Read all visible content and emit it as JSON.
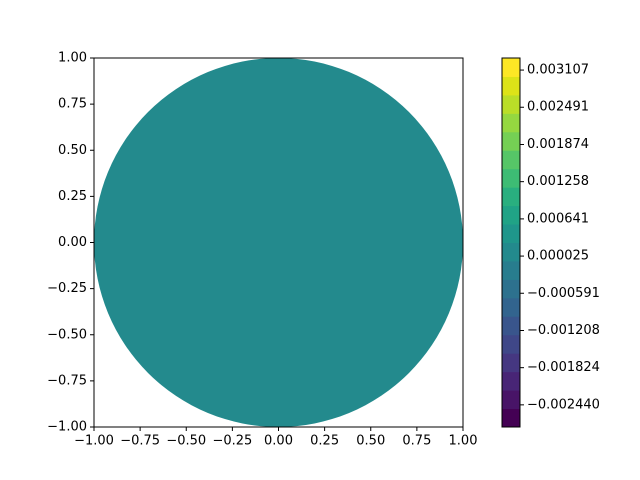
{
  "chart_data": {
    "type": "filled-contour",
    "xlim": [
      -1,
      1
    ],
    "ylim": [
      -1,
      1
    ],
    "xticks": [
      {
        "value": -1,
        "label": "−1.00"
      },
      {
        "value": -0.75,
        "label": "−0.75"
      },
      {
        "value": -0.5,
        "label": "−0.50"
      },
      {
        "value": -0.25,
        "label": "−0.25"
      },
      {
        "value": 0,
        "label": "0.00"
      },
      {
        "value": 0.25,
        "label": "0.25"
      },
      {
        "value": 0.5,
        "label": "0.50"
      },
      {
        "value": 0.75,
        "label": "0.75"
      },
      {
        "value": 1,
        "label": "1.00"
      }
    ],
    "yticks": [
      {
        "value": -1,
        "label": "−1.00"
      },
      {
        "value": -0.75,
        "label": "−0.75"
      },
      {
        "value": -0.5,
        "label": "−0.50"
      },
      {
        "value": -0.25,
        "label": "−0.25"
      },
      {
        "value": 0,
        "label": "0.00"
      },
      {
        "value": 0.25,
        "label": "0.25"
      },
      {
        "value": 0.5,
        "label": "0.50"
      },
      {
        "value": 0.75,
        "label": "0.75"
      },
      {
        "value": 1,
        "label": "1.00"
      }
    ],
    "domain": {
      "center_x": 0,
      "center_y": 0,
      "radius": 1,
      "color": "#238a8d"
    },
    "colorbar": {
      "lim": [
        -0.002807,
        0.003307
      ],
      "colors": [
        "#440154",
        "#481467",
        "#482576",
        "#453781",
        "#3f4788",
        "#39558c",
        "#32648e",
        "#2d718e",
        "#287d8e",
        "#238a8d",
        "#1f968b",
        "#20a386",
        "#29af7f",
        "#3dbc74",
        "#56c667",
        "#75d054",
        "#95d840",
        "#bade28",
        "#dde318",
        "#fde725"
      ],
      "ticks": [
        {
          "value": -0.00244,
          "label": "−0.002440"
        },
        {
          "value": -0.001824,
          "label": "−0.001824"
        },
        {
          "value": -0.001208,
          "label": "−0.001208"
        },
        {
          "value": -0.000591,
          "label": "−0.000591"
        },
        2.5e-05,
        0.000641,
        0.001258,
        0.001874,
        0.002491,
        0.003107
      ]
    }
  }
}
